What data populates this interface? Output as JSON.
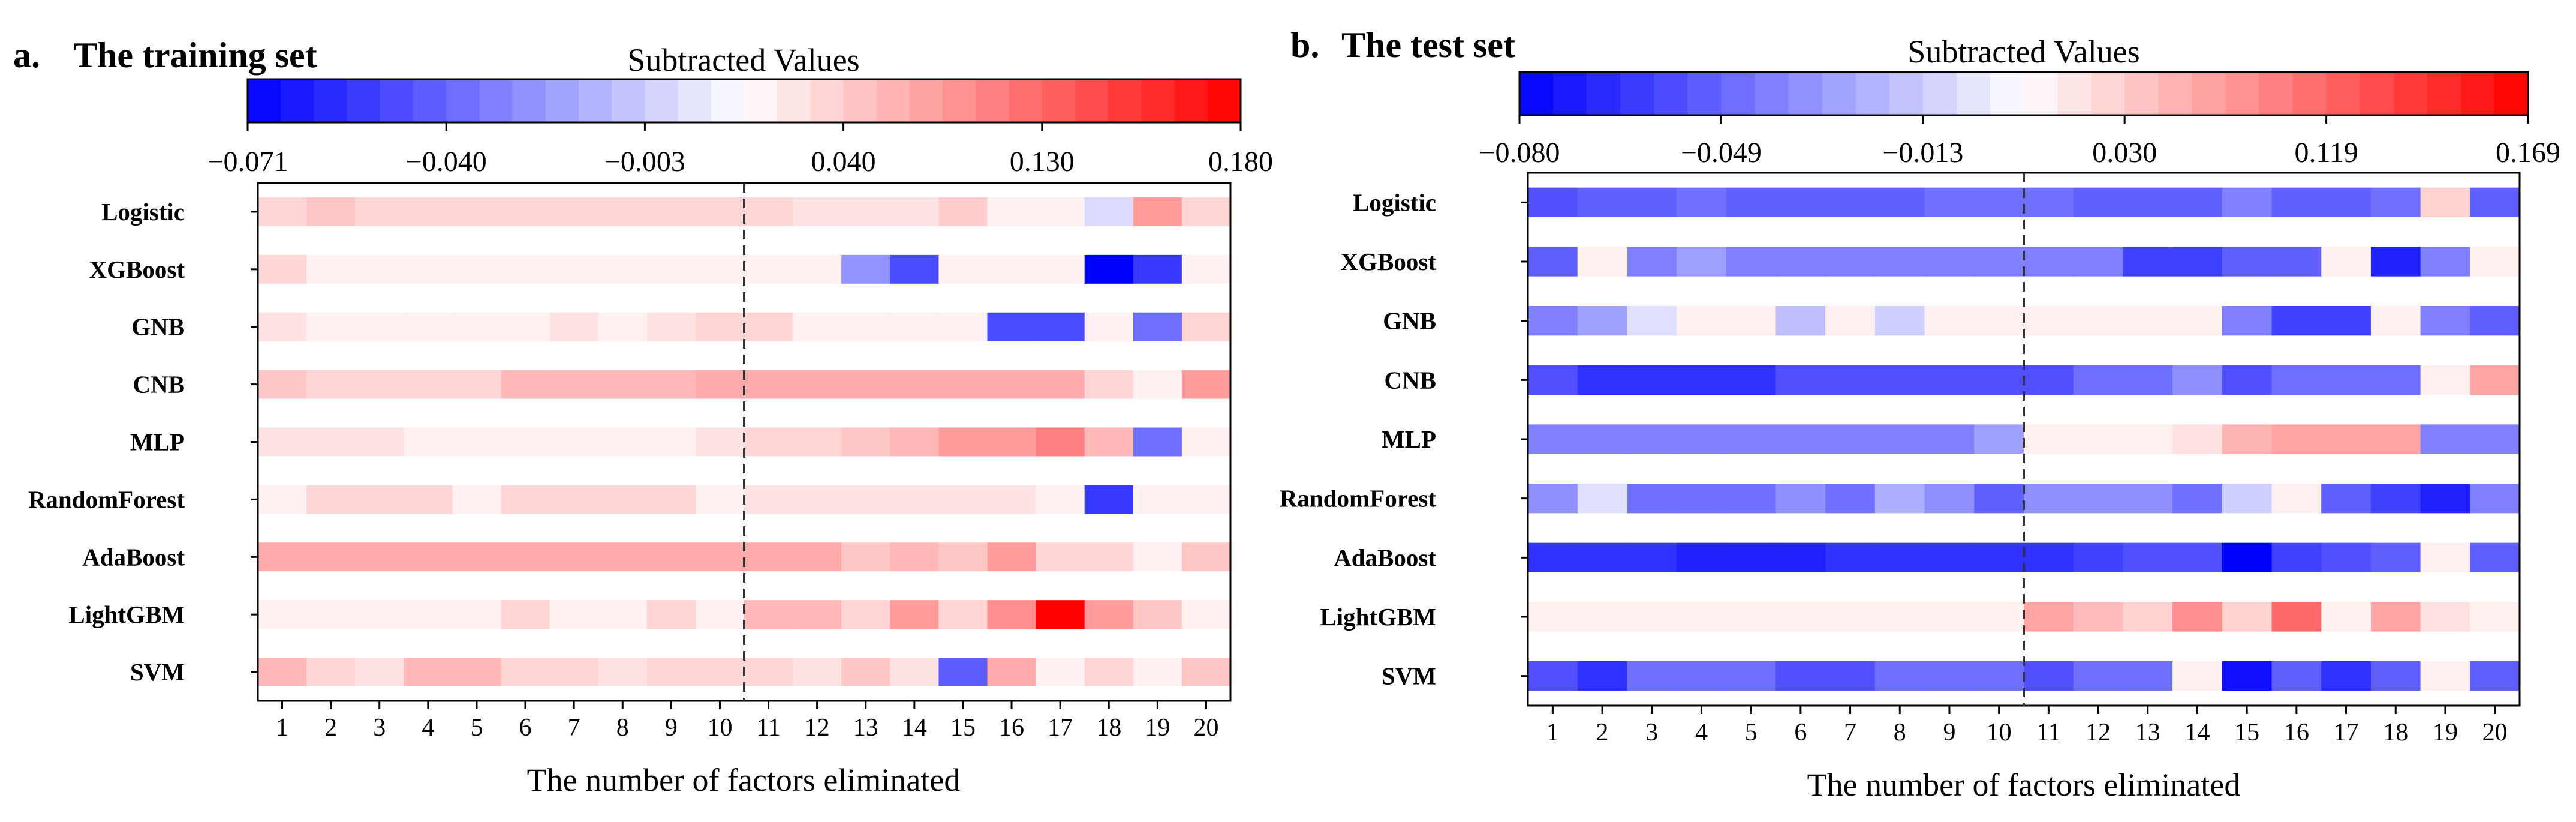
{
  "chart_data": [
    {
      "type": "heatmap",
      "panel_label": "a.",
      "title": "The training set",
      "colorbar_label": "Subtracted Values",
      "colorbar_ticks": [
        "−0.071",
        "−0.040",
        "−0.003",
        "0.040",
        "0.130",
        "0.180"
      ],
      "vmin": -0.071,
      "vmax": 0.18,
      "xlabel": "The number of factors eliminated",
      "x": [
        1,
        2,
        3,
        4,
        5,
        6,
        7,
        8,
        9,
        10,
        11,
        12,
        13,
        14,
        15,
        16,
        17,
        18,
        19,
        20
      ],
      "divider_after": 10,
      "rows": [
        "Logistic",
        "XGBoost",
        "GNB",
        "CNB",
        "MLP",
        "RandomForest",
        "AdaBoost",
        "LightGBM",
        "SVM"
      ],
      "values": [
        [
          0.03,
          0.04,
          0.03,
          0.03,
          0.03,
          0.03,
          0.03,
          0.03,
          0.03,
          0.03,
          0.03,
          0.02,
          0.02,
          0.02,
          0.035,
          0.01,
          0.01,
          -0.01,
          0.07,
          0.03
        ],
        [
          0.03,
          0.01,
          0.01,
          0.01,
          0.01,
          0.01,
          0.01,
          0.01,
          0.01,
          0.01,
          0.01,
          0.01,
          -0.03,
          -0.05,
          0.01,
          0.01,
          0.01,
          -0.071,
          -0.055,
          0.01
        ],
        [
          0.02,
          0.01,
          0.01,
          0.01,
          0.01,
          0.01,
          0.02,
          0.01,
          0.02,
          0.03,
          0.03,
          0.01,
          0.01,
          0.01,
          0.01,
          -0.05,
          -0.05,
          0.01,
          -0.04,
          0.03
        ],
        [
          0.04,
          0.03,
          0.03,
          0.03,
          0.03,
          0.05,
          0.05,
          0.05,
          0.05,
          0.06,
          0.06,
          0.06,
          0.06,
          0.06,
          0.06,
          0.06,
          0.06,
          0.03,
          0.01,
          0.07
        ],
        [
          0.02,
          0.02,
          0.02,
          0.01,
          0.01,
          0.01,
          0.01,
          0.01,
          0.01,
          0.02,
          0.03,
          0.03,
          0.04,
          0.05,
          0.07,
          0.07,
          0.09,
          0.05,
          -0.04,
          0.01
        ],
        [
          0.01,
          0.03,
          0.03,
          0.03,
          0.01,
          0.03,
          0.03,
          0.03,
          0.03,
          0.01,
          0.02,
          0.02,
          0.02,
          0.02,
          0.02,
          0.02,
          0.01,
          -0.055,
          0.01,
          0.01
        ],
        [
          0.06,
          0.06,
          0.06,
          0.06,
          0.06,
          0.06,
          0.06,
          0.06,
          0.06,
          0.06,
          0.06,
          0.06,
          0.04,
          0.05,
          0.04,
          0.07,
          0.03,
          0.03,
          0.01,
          0.04
        ],
        [
          0.01,
          0.01,
          0.01,
          0.01,
          0.01,
          0.03,
          0.01,
          0.01,
          0.03,
          0.01,
          0.05,
          0.05,
          0.03,
          0.07,
          0.03,
          0.08,
          0.18,
          0.07,
          0.04,
          0.01
        ],
        [
          0.05,
          0.03,
          0.02,
          0.05,
          0.05,
          0.03,
          0.03,
          0.02,
          0.03,
          0.03,
          0.03,
          0.02,
          0.04,
          0.02,
          -0.045,
          0.06,
          0.01,
          0.03,
          0.01,
          0.04
        ]
      ]
    },
    {
      "type": "heatmap",
      "panel_label": "b.",
      "title": "The test set",
      "colorbar_label": "Subtracted Values",
      "colorbar_ticks": [
        "−0.080",
        "−0.049",
        "−0.013",
        "0.030",
        "0.119",
        "0.169"
      ],
      "vmin": -0.08,
      "vmax": 0.169,
      "xlabel": "The number of factors eliminated",
      "x": [
        1,
        2,
        3,
        4,
        5,
        6,
        7,
        8,
        9,
        10,
        11,
        12,
        13,
        14,
        15,
        16,
        17,
        18,
        19,
        20
      ],
      "divider_after": 10,
      "rows": [
        "Logistic",
        "XGBoost",
        "GNB",
        "CNB",
        "MLP",
        "RandomForest",
        "AdaBoost",
        "LightGBM",
        "SVM"
      ],
      "values": [
        [
          -0.055,
          -0.05,
          -0.05,
          -0.045,
          -0.05,
          -0.05,
          -0.05,
          -0.05,
          -0.045,
          -0.045,
          -0.045,
          -0.05,
          -0.05,
          -0.05,
          -0.04,
          -0.05,
          -0.05,
          -0.045,
          0.03,
          -0.05
        ],
        [
          -0.05,
          0.01,
          -0.04,
          -0.03,
          -0.04,
          -0.04,
          -0.04,
          -0.04,
          -0.04,
          -0.04,
          -0.04,
          -0.04,
          -0.06,
          -0.06,
          -0.05,
          -0.05,
          0.01,
          -0.07,
          -0.04,
          0.01
        ],
        [
          -0.04,
          -0.03,
          -0.01,
          0.01,
          0.01,
          -0.02,
          0.01,
          -0.015,
          0.01,
          0.01,
          0.01,
          0.01,
          0.01,
          0.01,
          -0.04,
          -0.06,
          -0.06,
          0.01,
          -0.04,
          -0.05
        ],
        [
          -0.055,
          -0.065,
          -0.065,
          -0.065,
          -0.065,
          -0.055,
          -0.055,
          -0.055,
          -0.055,
          -0.055,
          -0.055,
          -0.045,
          -0.045,
          -0.035,
          -0.055,
          -0.045,
          -0.045,
          -0.045,
          0.01,
          0.06
        ],
        [
          -0.04,
          -0.04,
          -0.04,
          -0.04,
          -0.04,
          -0.04,
          -0.04,
          -0.04,
          -0.04,
          -0.03,
          0.01,
          0.01,
          0.01,
          0.02,
          0.05,
          0.06,
          0.06,
          0.06,
          -0.04,
          -0.04
        ],
        [
          -0.035,
          -0.01,
          -0.045,
          -0.045,
          -0.045,
          -0.035,
          -0.045,
          -0.025,
          -0.035,
          -0.05,
          -0.035,
          -0.035,
          -0.035,
          -0.045,
          -0.015,
          0.01,
          -0.05,
          -0.06,
          -0.07,
          -0.04
        ],
        [
          -0.065,
          -0.065,
          -0.065,
          -0.07,
          -0.07,
          -0.07,
          -0.065,
          -0.065,
          -0.065,
          -0.065,
          -0.065,
          -0.06,
          -0.055,
          -0.055,
          -0.08,
          -0.06,
          -0.055,
          -0.05,
          0.01,
          -0.05
        ],
        [
          0.01,
          0.01,
          0.01,
          0.01,
          0.01,
          0.01,
          0.01,
          0.01,
          0.01,
          0.01,
          0.06,
          0.045,
          0.03,
          0.075,
          0.03,
          0.1,
          0.01,
          0.06,
          0.02,
          0.01
        ],
        [
          -0.055,
          -0.065,
          -0.045,
          -0.045,
          -0.045,
          -0.055,
          -0.055,
          -0.045,
          -0.045,
          -0.045,
          -0.055,
          -0.045,
          -0.045,
          0.01,
          -0.075,
          -0.05,
          -0.065,
          -0.05,
          0.01,
          -0.05
        ]
      ]
    }
  ]
}
